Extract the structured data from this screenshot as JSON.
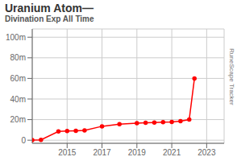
{
  "chart_data": {
    "type": "line",
    "title": "Uranium Atom—",
    "subtitle": "Divination Exp All Time",
    "annotations": [
      "RuneScape Tracker"
    ],
    "x": [
      2013.0,
      2013.5,
      2014.5,
      2015.0,
      2015.5,
      2016.0,
      2017.0,
      2018.0,
      2019.0,
      2019.5,
      2020.0,
      2020.5,
      2021.0,
      2021.5,
      2022.0,
      2022.3
    ],
    "values": [
      0.2,
      0.3,
      8.5,
      9.0,
      9.2,
      9.5,
      13.5,
      15.5,
      16.5,
      17.0,
      17.2,
      17.5,
      17.8,
      18.5,
      20.0,
      60.0
    ],
    "color": "#ff0000",
    "marker": "circle",
    "xlim": [
      2013,
      2024
    ],
    "ylim": [
      -3,
      108
    ],
    "xticks": [
      2015,
      2017,
      2019,
      2021,
      2023
    ],
    "yticks": [
      0,
      {
        "value": 20,
        "label": "20m"
      },
      {
        "value": 40,
        "label": "40m"
      },
      {
        "value": 60,
        "label": "60m"
      },
      {
        "value": 80,
        "label": "80m"
      },
      {
        "value": 100,
        "label": "100m"
      }
    ],
    "grid": true
  }
}
